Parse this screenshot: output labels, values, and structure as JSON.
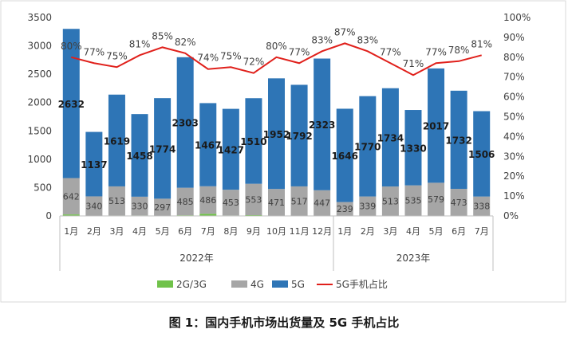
{
  "chart_data": {
    "type": "bar",
    "categories": [
      "1月",
      "2月",
      "3月",
      "4月",
      "5月",
      "6月",
      "7月",
      "8月",
      "9月",
      "10月",
      "11月",
      "12月",
      "1月",
      "2月",
      "3月",
      "4月",
      "5月",
      "6月",
      "7月"
    ],
    "groups": [
      {
        "label": "2022年",
        "count": 12
      },
      {
        "label": "2023年",
        "count": 7
      }
    ],
    "series": [
      {
        "name": "2G/3G",
        "kind": "bar",
        "color": "#70c24a",
        "values": [
          26,
          5,
          8,
          9,
          7,
          12,
          37,
          9,
          14,
          4,
          4,
          6,
          6,
          4,
          6,
          4,
          6,
          4,
          4
        ]
      },
      {
        "name": "4G",
        "kind": "bar",
        "color": "#a6a6a6",
        "values": [
          642,
          340,
          513,
          330,
          297,
          485,
          486,
          453,
          553,
          471,
          517,
          447,
          239,
          339,
          513,
          535,
          579,
          473,
          338
        ]
      },
      {
        "name": "5G",
        "kind": "bar",
        "color": "#2e75b6",
        "values": [
          2632,
          1137,
          1619,
          1458,
          1774,
          2303,
          1467,
          1427,
          1510,
          1952,
          1792,
          2323,
          1646,
          1770,
          1734,
          1330,
          2017,
          1732,
          1506
        ]
      },
      {
        "name": "5G手机占比",
        "kind": "line",
        "axis": "right",
        "color": "#e0201b",
        "values": [
          80,
          77,
          75,
          81,
          85,
          82,
          74,
          75,
          72,
          80,
          77,
          83,
          87,
          83,
          77,
          71,
          77,
          78,
          81
        ],
        "labels": [
          "80%",
          "77%",
          "75%",
          "81%",
          "85%",
          "82%",
          "74%",
          "75%",
          "72%",
          "80%",
          "77%",
          "83%",
          "87%",
          "83%",
          "77%",
          "71%",
          "77%",
          "78%",
          "81%"
        ]
      }
    ],
    "ylim": [
      0,
      3500
    ],
    "yticks": [
      "0",
      "500",
      "1000",
      "1500",
      "2000",
      "2500",
      "3000",
      "3500"
    ],
    "y2lim": [
      0,
      100
    ],
    "y2ticks": [
      "0%",
      "10%",
      "20%",
      "30%",
      "40%",
      "50%",
      "60%",
      "70%",
      "80%",
      "90%",
      "100%"
    ],
    "legend_position": "bottom",
    "grid": false
  },
  "caption": "图 1：国内手机市场出货量及 5G 手机占比"
}
